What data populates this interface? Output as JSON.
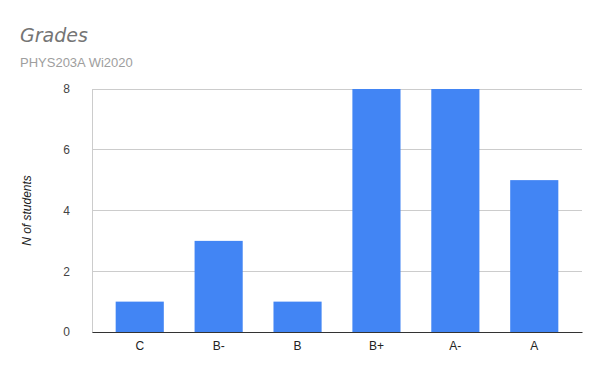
{
  "chart_data": {
    "type": "bar",
    "title": "Grades",
    "subtitle": "PHYS203A Wi2020",
    "y_label": "N of students",
    "categories": [
      "C",
      "B-",
      "B",
      "B+",
      "A-",
      "A"
    ],
    "values": [
      1,
      3,
      1,
      8,
      8,
      5
    ],
    "color": "#4285f4",
    "ylim": [
      0,
      8
    ],
    "yticks": [
      0,
      2,
      4,
      6,
      8
    ],
    "grid": true
  }
}
